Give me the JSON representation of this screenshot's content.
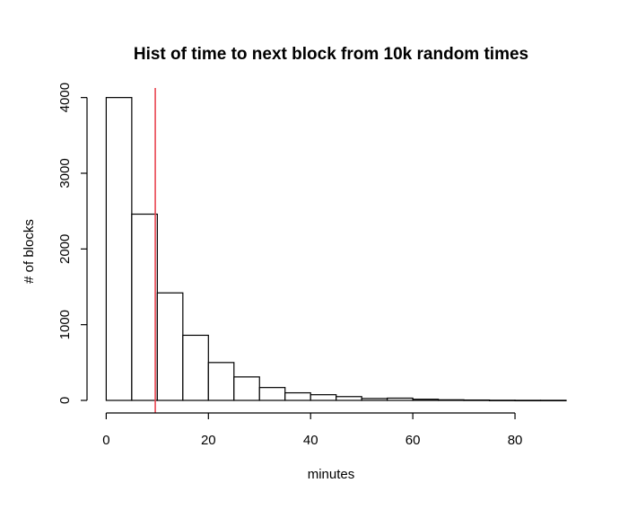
{
  "chart_data": {
    "type": "bar",
    "title": "Hist of time to next block from 10k random times",
    "xlabel": "minutes",
    "ylabel": "# of blocks",
    "xlim": [
      -2,
      90
    ],
    "ylim": [
      0,
      4150
    ],
    "x_ticks": [
      0,
      20,
      40,
      60,
      80
    ],
    "y_ticks": [
      0,
      1000,
      2000,
      3000,
      4000
    ],
    "bin_edges": [
      0,
      5,
      10,
      15,
      20,
      25,
      30,
      35,
      40,
      45,
      50,
      55,
      60,
      65,
      70,
      75,
      80,
      85,
      90
    ],
    "values": [
      4000,
      2460,
      1420,
      860,
      500,
      310,
      170,
      100,
      75,
      50,
      25,
      30,
      15,
      8,
      5,
      2,
      1,
      1
    ],
    "reference_line": {
      "x": 9.6,
      "color": "#e8434f"
    },
    "grid": false,
    "legend": "none"
  }
}
